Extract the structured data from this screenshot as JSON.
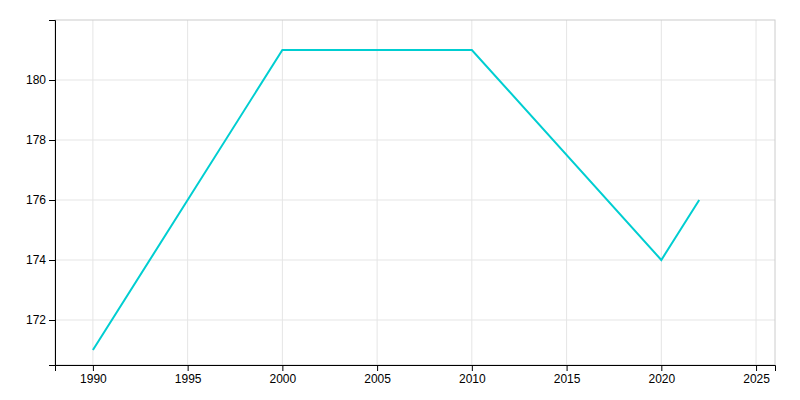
{
  "chart_data": {
    "type": "line",
    "x": [
      1990,
      2000,
      2010,
      2020,
      2021,
      2022
    ],
    "values": [
      171,
      181,
      181,
      174,
      175,
      176
    ],
    "color": "#00CED1",
    "xlim": [
      1988,
      2026
    ],
    "ylim": [
      170.5,
      182
    ],
    "xticks": [
      1990,
      1995,
      2000,
      2005,
      2010,
      2015,
      2020,
      2025
    ],
    "yticks": [
      172,
      174,
      176,
      178,
      180
    ],
    "grid": true
  }
}
